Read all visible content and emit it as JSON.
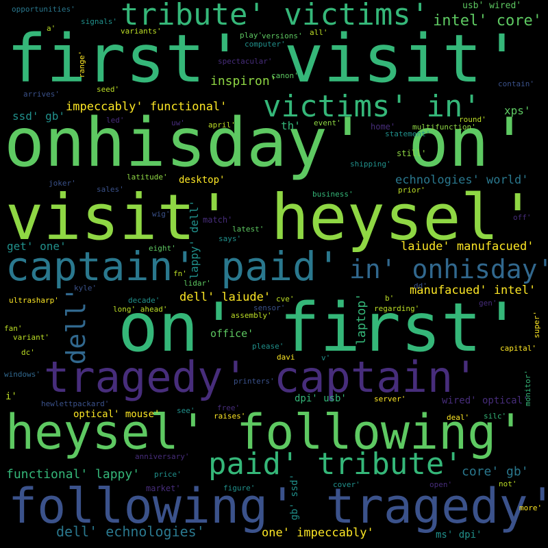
{
  "colors": {
    "background": "#000000",
    "green_bright": "#8fd744",
    "green": "#35b779",
    "green_mid": "#5ec962",
    "teal": "#21918c",
    "teal_blue": "#2a788e",
    "blue": "#3b528b",
    "blue_dark": "#31688e",
    "purple": "#472d7b",
    "purple_dark": "#440154",
    "yellow": "#fde725",
    "lime": "#bddf26"
  },
  "words": {
    "w1": "first' visit'",
    "w2": "onhisday' on'",
    "w3": "visit' heysel'",
    "w4": "on' first'",
    "w5": "heysel' following'",
    "w6": "following' tragedy'",
    "w7": "tragedy' captain'",
    "w8": "captain' paid'",
    "w9": "tribute' victims'",
    "w10": "victims' in'",
    "w11": "paid' tribute'",
    "w12": "in' onhisday'",
    "w13": "dell'",
    "w14": "intel' core'",
    "w15": "impeccably' functional'",
    "w16": "inspiron'",
    "w17": "echnologies' world'",
    "w18": "laiude' manufacued'",
    "w19": "manufacued' intel'",
    "w20": "dell' laiude'",
    "w21": "laptop'",
    "w22": "functional' lappy'",
    "w23": "core' gb'",
    "w24": "dell' echnologies'",
    "w25": "one' impeccably'",
    "w26": "lappy' dell'",
    "w27": "ssd' gb'",
    "w28": "xps'",
    "w29": "th'",
    "w30": "desktop'",
    "w31": "get' one'",
    "w32": "office'",
    "w33": "usb' wired'",
    "w34": "opportunities'",
    "w35": "signals'",
    "w36": "variants'",
    "w37": "play'",
    "w38": "versions'",
    "w39": "all'",
    "w40": "a'",
    "w41": "computer'",
    "w42": "range'",
    "w43": "spectacular'",
    "w44": "canon'",
    "w45": "seed'",
    "w46": "arrives'",
    "w47": "contain'",
    "w48": "led'",
    "w49": "uw'",
    "w50": "april'",
    "w51": "event'",
    "w52": "home'",
    "w53": "multifunction'",
    "w54": "round'",
    "w55": "statement'",
    "w56": "still'",
    "w57": "shipping'",
    "w58": "joker'",
    "w59": "latitude'",
    "w60": "sales'",
    "w61": "business'",
    "w62": "prior'",
    "w63": "wig'",
    "w64": "match'",
    "w65": "off'",
    "w66": "latest'",
    "w67": "says'",
    "w68": "eight'",
    "w69": "fn'",
    "w70": "lidar'",
    "w71": "kyle'",
    "w72": "dd'",
    "w73": "b'",
    "w74": "ultrasharp'",
    "w75": "decade'",
    "w76": "long' ahead'",
    "w77": "cve'",
    "w78": "sensor'",
    "w79": "regarding'",
    "w80": "gen'",
    "w81": "assembly'",
    "w82": "fan'",
    "w83": "variant'",
    "w84": "super'",
    "w85": "please'",
    "w86": "capital'",
    "w87": "dc'",
    "w88": "davi",
    "w89": "v'",
    "w90": "windows'",
    "w91": "printers'",
    "w92": "monitor'",
    "w93": "i'",
    "w94": "dpi' usb'",
    "w95": "server'",
    "w96": "hewlettpackard'",
    "w97": "wired' optical'",
    "w98": "see'",
    "w99": "free'",
    "w100": "optical' mouse'",
    "w101": "raises'",
    "w102": "deal'",
    "w103": "silc'",
    "w104": "anniversary'",
    "w105": "price'",
    "w106": "market'",
    "w107": "figure'",
    "w108": "gb' ssd'",
    "w109": "cover'",
    "w110": "open'",
    "w111": "not'",
    "w112": "more'",
    "w113": "ms' dpi'"
  }
}
